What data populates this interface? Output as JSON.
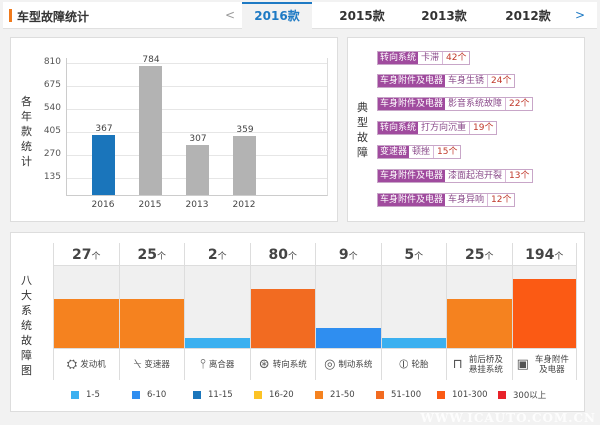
{
  "header": {
    "title": "车型故障统计",
    "prev": "<",
    "next": ">",
    "tabs": [
      {
        "label": "2016款",
        "active": true
      },
      {
        "label": "2015款"
      },
      {
        "label": "2013款"
      },
      {
        "label": "2012款"
      }
    ]
  },
  "year_chart": {
    "ylabel": "各年款统计",
    "yticks": [
      810,
      675,
      540,
      405,
      270,
      135
    ],
    "ymax": 810,
    "categories": [
      "2016",
      "2015",
      "2013",
      "2012"
    ],
    "values": [
      367,
      784,
      307,
      359
    ],
    "colors": [
      "#1a75bb",
      "#b3b3b3",
      "#b3b3b3",
      "#b3b3b3"
    ]
  },
  "typical": {
    "label": "典型故障",
    "items": [
      {
        "system": "转向系统",
        "issue": "卡滞",
        "count": "42个"
      },
      {
        "system": "车身附件及电器",
        "issue": "车身生锈",
        "count": "24个"
      },
      {
        "system": "车身附件及电器",
        "issue": "影音系统故障",
        "count": "22个"
      },
      {
        "system": "转向系统",
        "issue": "打方向沉重",
        "count": "19个"
      },
      {
        "system": "变速器",
        "issue": "顿挫",
        "count": "15个"
      },
      {
        "system": "车身附件及电器",
        "issue": "漆面起泡开裂",
        "count": "13个"
      },
      {
        "system": "车身附件及电器",
        "issue": "车身异响",
        "count": "12个"
      }
    ]
  },
  "systems": {
    "label": "八大系统故障图",
    "unit": "个",
    "items": [
      {
        "name": "发动机",
        "count": "27",
        "level": 0.6,
        "color": "#f5821f",
        "icon": "engine-icon",
        "glyph": "⛭"
      },
      {
        "name": "变速器",
        "count": "25",
        "level": 0.6,
        "color": "#f5821f",
        "icon": "gear-shift-icon",
        "glyph": "⍀"
      },
      {
        "name": "离合器",
        "count": "2",
        "level": 0.12,
        "color": "#3bb0f0",
        "icon": "clutch-icon",
        "glyph": "⫯"
      },
      {
        "name": "转向系统",
        "count": "80",
        "level": 0.72,
        "color": "#f26b21",
        "icon": "steering-wheel-icon",
        "glyph": "⊛"
      },
      {
        "name": "制动系统",
        "count": "9",
        "level": 0.24,
        "color": "#2f8ef0",
        "icon": "brake-disc-icon",
        "glyph": "◎"
      },
      {
        "name": "轮胎",
        "count": "5",
        "level": 0.12,
        "color": "#3bb0f0",
        "icon": "tire-icon",
        "glyph": "⦶"
      },
      {
        "name": "前后桥及悬挂系统",
        "count": "25",
        "level": 0.6,
        "color": "#f5821f",
        "icon": "suspension-icon",
        "glyph": "⊓"
      },
      {
        "name": "车身附件及电器",
        "count": "194",
        "level": 0.84,
        "color": "#fb5a14",
        "icon": "battery-icon",
        "glyph": "▣"
      }
    ]
  },
  "legend": [
    {
      "label": "1-5",
      "color": "#3bb0f0"
    },
    {
      "label": "6-10",
      "color": "#2f8ef0"
    },
    {
      "label": "11-15",
      "color": "#1a75bb"
    },
    {
      "label": "16-20",
      "color": "#fcc325"
    },
    {
      "label": "21-50",
      "color": "#f5821f"
    },
    {
      "label": "51-100",
      "color": "#f26b21"
    },
    {
      "label": "101-300",
      "color": "#fb5a14"
    },
    {
      "label": "300以上",
      "color": "#e8222a"
    }
  ],
  "watermark": "WWW.ICAUTO.COM.CN"
}
